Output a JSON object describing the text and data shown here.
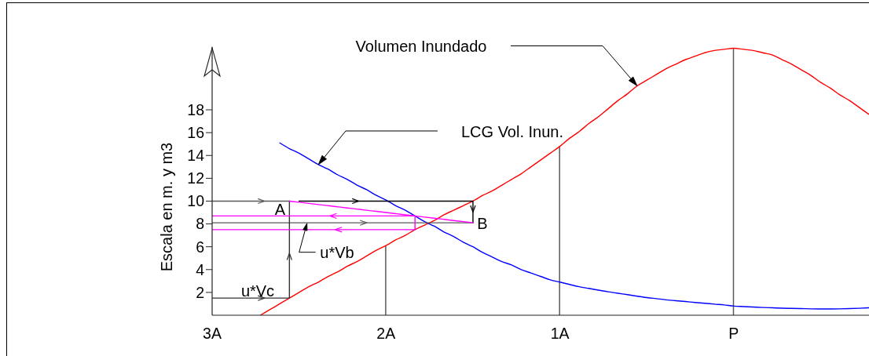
{
  "chart_data": {
    "type": "line",
    "ylabel": "Escala en m. y m3",
    "categories": [
      "3A",
      null,
      null,
      null,
      null,
      null,
      null,
      null,
      null,
      null,
      null,
      null,
      null,
      null,
      null,
      null,
      null,
      null,
      "2A",
      null,
      null,
      null,
      null,
      null,
      null,
      null,
      null,
      null,
      null,
      null,
      null,
      null,
      null,
      null,
      null,
      null,
      "1A",
      null,
      null,
      null,
      null,
      null,
      null,
      null,
      null,
      null,
      null,
      null,
      null,
      null,
      null,
      null,
      null,
      null,
      "P",
      null,
      null,
      null,
      null,
      null,
      null,
      null,
      null,
      null,
      null,
      null,
      null,
      null,
      null
    ],
    "ylim": [
      0,
      23.5
    ],
    "yticks": [
      2,
      4,
      6,
      8,
      10,
      12,
      14,
      16,
      18
    ],
    "series": [
      {
        "color": "#ff0000",
        "values": [
          null,
          null,
          null,
          null,
          null,
          0,
          0.5,
          1.0,
          1.5,
          2.0,
          2.5,
          2.9,
          3.4,
          3.8,
          4.3,
          4.7,
          5.2,
          5.7,
          6.1,
          6.6,
          7.0,
          7.5,
          7.9,
          8.3,
          8.8,
          9.2,
          9.6,
          10.0,
          10.5,
          10.9,
          11.4,
          11.9,
          12.4,
          13.0,
          13.6,
          14.2,
          14.8,
          15.5,
          16.1,
          16.8,
          17.4,
          18.1,
          18.8,
          19.4,
          20.1,
          20.6,
          21.1,
          21.6,
          22.0,
          22.4,
          22.7,
          23.0,
          23.2,
          23.3,
          23.4,
          23.3,
          23.2,
          23.0,
          22.8,
          22.4,
          22.0,
          21.5,
          21.0,
          20.4,
          19.9,
          19.3,
          18.8,
          18.2,
          17.6
        ]
      },
      {
        "color": "#0000ff",
        "values": [
          null,
          null,
          null,
          null,
          null,
          null,
          null,
          15.1,
          14.6,
          14.2,
          13.7,
          13.2,
          12.8,
          12.3,
          11.9,
          11.4,
          11.0,
          10.5,
          10.1,
          9.6,
          9.2,
          8.7,
          8.2,
          7.8,
          7.3,
          6.9,
          6.4,
          6.0,
          5.5,
          5.1,
          4.7,
          4.4,
          4.0,
          3.7,
          3.4,
          3.1,
          2.9,
          2.7,
          2.5,
          2.35,
          2.2,
          2.05,
          1.92,
          1.8,
          1.67,
          1.55,
          1.45,
          1.35,
          1.27,
          1.2,
          1.12,
          1.05,
          0.97,
          0.9,
          0.8,
          0.76,
          0.72,
          0.68,
          0.65,
          0.62,
          0.6,
          0.58,
          0.56,
          0.55,
          0.55,
          0.56,
          0.58,
          0.61,
          0.65
        ]
      },
      {
        "type": "bar",
        "color": "#5a5a5a",
        "values": [
          null,
          null,
          null,
          null,
          null,
          null,
          null,
          null,
          null,
          null,
          null,
          null,
          null,
          null,
          null,
          null,
          null,
          null,
          6.1,
          null,
          null,
          null,
          null,
          null,
          null,
          null,
          null,
          null,
          null,
          null,
          null,
          null,
          null,
          null,
          null,
          null,
          14.8,
          null,
          null,
          null,
          null,
          null,
          null,
          null,
          null,
          null,
          null,
          null,
          null,
          null,
          null,
          null,
          null,
          null,
          23.4,
          null,
          null,
          null,
          null,
          null,
          null,
          null,
          null,
          null,
          null,
          null,
          null,
          null,
          null
        ]
      },
      {
        "color": "#5a5a5a",
        "values": [
          10,
          10,
          10,
          10,
          10,
          10,
          10,
          10,
          10,
          null,
          null,
          null,
          null,
          null,
          null,
          null,
          null,
          null,
          null,
          null,
          null,
          null,
          null,
          null,
          null,
          null,
          null,
          null,
          null,
          null,
          null,
          null,
          null,
          null,
          null,
          null,
          null,
          null,
          null,
          null,
          null,
          null,
          null,
          null,
          null,
          null,
          null,
          null,
          null,
          null,
          null,
          null,
          null,
          null,
          null,
          null,
          null,
          null,
          null,
          null,
          null,
          null,
          null,
          null,
          null,
          null,
          null,
          null,
          null
        ]
      },
      {
        "type": "step",
        "color": "#000000",
        "values": [
          null,
          null,
          null,
          null,
          null,
          null,
          null,
          null,
          null,
          10,
          10,
          10,
          10,
          10,
          10,
          10,
          10,
          10,
          10,
          10,
          10,
          10,
          10,
          10,
          10,
          10,
          10,
          8.1,
          null,
          null,
          null,
          null,
          null,
          null,
          null,
          null,
          null,
          null,
          null,
          null,
          null,
          null,
          null,
          null,
          null,
          null,
          null,
          null,
          null,
          null,
          null,
          null,
          null,
          null,
          null,
          null,
          null,
          null,
          null,
          null,
          null,
          null,
          null,
          null,
          null,
          null,
          null,
          null,
          null
        ]
      },
      {
        "color": "#5a5a5a",
        "values": [
          8.1,
          8.1,
          8.1,
          8.1,
          8.1,
          8.1,
          8.1,
          8.1,
          8.1,
          8.1,
          8.1,
          8.1,
          8.1,
          8.1,
          8.1,
          8.1,
          8.1,
          8.1,
          8.1,
          8.1,
          8.1,
          8.1,
          8.1,
          8.1,
          8.1,
          8.1,
          8.1,
          8.1,
          null,
          null,
          null,
          null,
          null,
          null,
          null,
          null,
          null,
          null,
          null,
          null,
          null,
          null,
          null,
          null,
          null,
          null,
          null,
          null,
          null,
          null,
          null,
          null,
          null,
          null,
          null,
          null,
          null,
          null,
          null,
          null,
          null,
          null,
          null,
          null,
          null,
          null,
          null,
          null,
          null
        ]
      },
      {
        "type": "step",
        "color": "#333333",
        "values": [
          1.5,
          1.5,
          1.5,
          1.5,
          1.5,
          1.5,
          1.5,
          1.5,
          10,
          null,
          null,
          null,
          null,
          null,
          null,
          null,
          null,
          null,
          null,
          null,
          null,
          null,
          null,
          null,
          null,
          null,
          null,
          null,
          null,
          null,
          null,
          null,
          null,
          null,
          null,
          null,
          null,
          null,
          null,
          null,
          null,
          null,
          null,
          null,
          null,
          null,
          null,
          null,
          null,
          null,
          null,
          null,
          null,
          null,
          null,
          null,
          null,
          null,
          null,
          null,
          null,
          null,
          null,
          null,
          null,
          null,
          null,
          null,
          null
        ]
      },
      {
        "color": "#ff00ff",
        "values": [
          null,
          null,
          null,
          null,
          null,
          null,
          null,
          null,
          10.0,
          9.9,
          9.8,
          9.7,
          9.6,
          9.5,
          9.4,
          9.3,
          9.2,
          9.1,
          9.0,
          8.9,
          8.8,
          8.7,
          8.6,
          8.5,
          8.4,
          8.3,
          8.2,
          8.1,
          null,
          null,
          null,
          null,
          null,
          null,
          null,
          null,
          null,
          null,
          null,
          null,
          null,
          null,
          null,
          null,
          null,
          null,
          null,
          null,
          null,
          null,
          null,
          null,
          null,
          null,
          null,
          null,
          null,
          null,
          null,
          null,
          null,
          null,
          null,
          null,
          null,
          null,
          null,
          null,
          null
        ]
      },
      {
        "type": "step",
        "color": "#ff00ff",
        "values": [
          8.7,
          8.7,
          8.7,
          8.7,
          8.7,
          8.7,
          8.7,
          8.7,
          8.7,
          8.7,
          8.7,
          8.7,
          8.7,
          8.7,
          8.7,
          8.7,
          8.7,
          8.7,
          8.7,
          8.7,
          8.7,
          7.5,
          null,
          null,
          null,
          null,
          null,
          null,
          null,
          null,
          null,
          null,
          null,
          null,
          null,
          null,
          null,
          null,
          null,
          null,
          null,
          null,
          null,
          null,
          null,
          null,
          null,
          null,
          null,
          null,
          null,
          null,
          null,
          null,
          null,
          null,
          null,
          null,
          null,
          null,
          null,
          null,
          null,
          null,
          null,
          null,
          null,
          null,
          null
        ]
      },
      {
        "color": "#ff00ff",
        "values": [
          7.5,
          7.5,
          7.5,
          7.5,
          7.5,
          7.5,
          7.5,
          7.5,
          7.5,
          7.5,
          7.5,
          7.5,
          7.5,
          7.5,
          7.5,
          7.5,
          7.5,
          7.5,
          7.5,
          7.5,
          7.5,
          7.5,
          null,
          null,
          null,
          null,
          null,
          null,
          null,
          null,
          null,
          null,
          null,
          null,
          null,
          null,
          null,
          null,
          null,
          null,
          null,
          null,
          null,
          null,
          null,
          null,
          null,
          null,
          null,
          null,
          null,
          null,
          null,
          null,
          null,
          null,
          null,
          null,
          null,
          null,
          null,
          null,
          null,
          null,
          null,
          null,
          null,
          null,
          null
        ]
      }
    ],
    "annotations": [
      "Volumen Inundado",
      "LCG Vol. Inun.",
      "A",
      "B",
      "u*Vb",
      "u*Vc"
    ]
  }
}
